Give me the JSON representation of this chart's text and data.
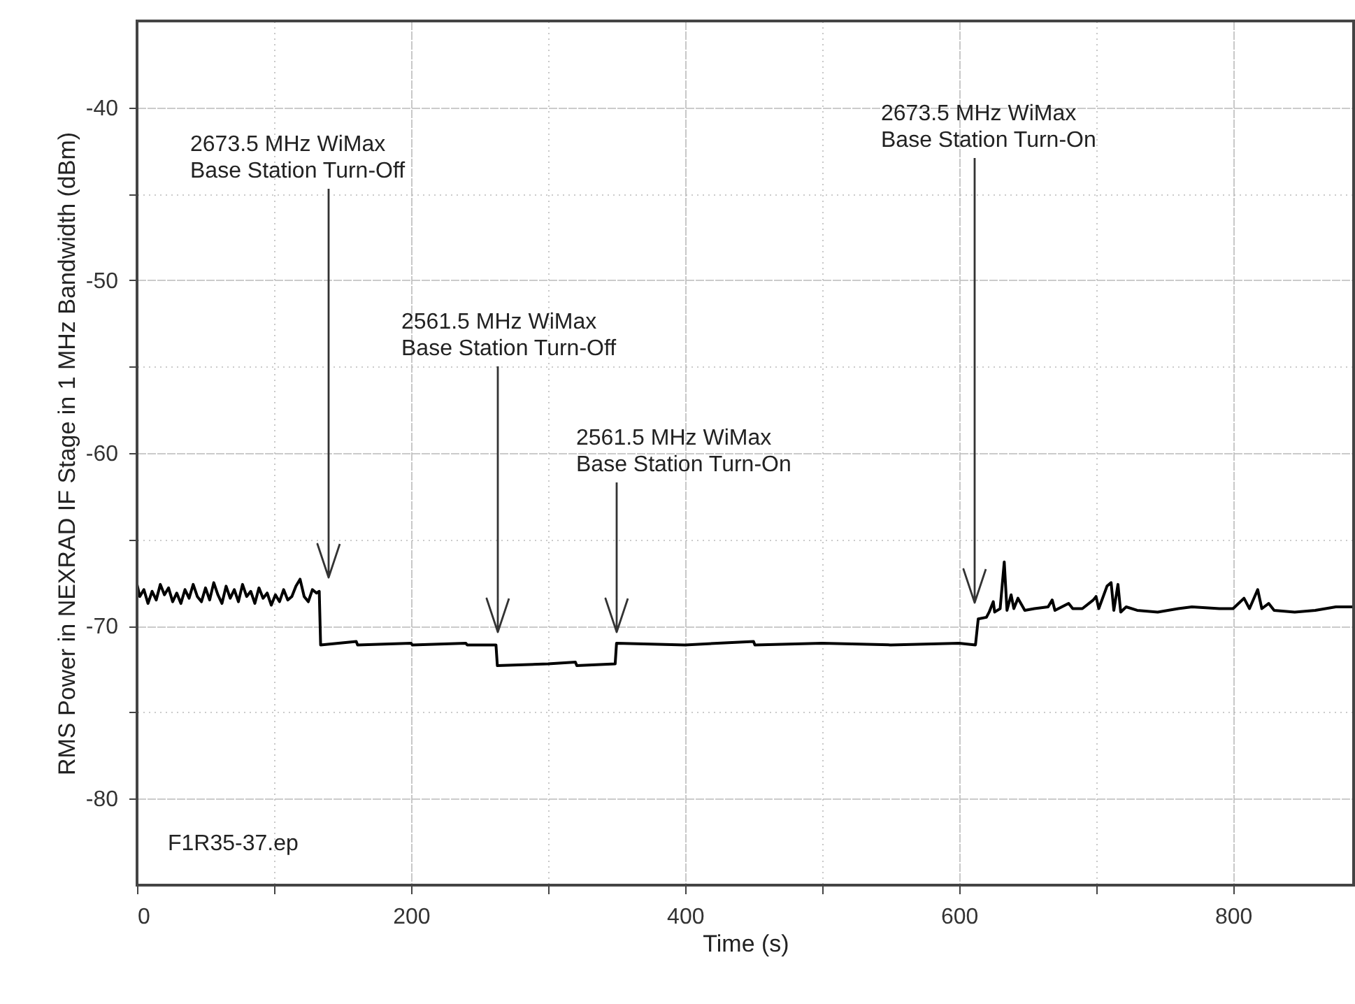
{
  "chart_data": {
    "type": "line",
    "xlabel": "Time (s)",
    "ylabel": "RMS Power in NEXRAD IF Stage in 1 MHz Bandwidth (dBm)",
    "xlim": [
      0,
      888
    ],
    "ylim": [
      -85,
      -35
    ],
    "xticks": [
      0,
      {
        "value": 100,
        "label": null
      },
      200,
      {
        "value": 300,
        "label": null
      },
      400,
      {
        "value": 500,
        "label": null
      },
      600,
      {
        "value": 700,
        "label": null
      },
      800
    ],
    "yticks": [
      -80,
      {
        "value": -75,
        "label": null
      },
      -70,
      {
        "value": -65,
        "label": null
      },
      -60,
      {
        "value": -55,
        "label": null
      },
      -50,
      {
        "value": -45,
        "label": null
      },
      -40
    ],
    "grid": true,
    "line_style": "solid",
    "x": [
      0,
      2,
      5,
      8,
      11,
      14,
      17,
      20,
      23,
      26,
      29,
      32,
      35,
      38,
      41,
      44,
      47,
      50,
      53,
      56,
      59,
      62,
      65,
      68,
      71,
      74,
      77,
      80,
      83,
      86,
      89,
      92,
      95,
      98,
      101,
      104,
      107,
      110,
      113,
      116,
      119,
      122,
      125,
      128,
      131,
      133,
      134,
      160,
      161,
      200,
      201,
      240,
      241,
      262,
      263,
      300,
      320,
      321,
      349,
      350,
      400,
      450,
      451,
      500,
      550,
      600,
      612,
      614,
      620,
      622,
      625,
      626,
      630,
      633,
      635,
      638,
      640,
      643,
      648,
      655,
      665,
      668,
      670,
      680,
      683,
      690,
      698,
      700,
      702,
      708,
      711,
      713,
      716,
      718,
      722,
      730,
      745,
      760,
      770,
      790,
      800,
      808,
      812,
      818,
      821,
      826,
      830,
      845,
      860,
      875,
      888
    ],
    "series": [
      {
        "color": "#000000",
        "values": [
          -67.6,
          -68.3,
          -67.9,
          -68.7,
          -68.0,
          -68.5,
          -67.6,
          -68.2,
          -67.8,
          -68.6,
          -68.1,
          -68.7,
          -67.9,
          -68.4,
          -67.6,
          -68.3,
          -68.6,
          -67.8,
          -68.5,
          -67.5,
          -68.2,
          -68.7,
          -67.7,
          -68.4,
          -67.9,
          -68.6,
          -67.6,
          -68.3,
          -68.0,
          -68.7,
          -67.8,
          -68.4,
          -68.1,
          -68.8,
          -68.2,
          -68.6,
          -67.9,
          -68.5,
          -68.3,
          -67.7,
          -67.3,
          -68.3,
          -68.6,
          -67.9,
          -68.1,
          -68.0,
          -71.1,
          -70.9,
          -71.1,
          -71.0,
          -71.1,
          -71.0,
          -71.1,
          -71.1,
          -72.3,
          -72.2,
          -72.1,
          -72.3,
          -72.2,
          -71.0,
          -71.1,
          -70.9,
          -71.1,
          -71.0,
          -71.1,
          -71.0,
          -71.1,
          -69.6,
          -69.5,
          -69.2,
          -68.6,
          -69.2,
          -69.0,
          -66.3,
          -69.1,
          -68.2,
          -69.0,
          -68.4,
          -69.1,
          -69.0,
          -68.9,
          -68.5,
          -69.1,
          -68.7,
          -69.0,
          -69.0,
          -68.5,
          -68.3,
          -69.0,
          -67.7,
          -67.5,
          -69.1,
          -67.6,
          -69.2,
          -68.9,
          -69.1,
          -69.2,
          -69.0,
          -68.9,
          -69.0,
          -69.0,
          -68.4,
          -69.0,
          -67.9,
          -69.0,
          -68.7,
          -69.1,
          -69.2,
          -69.1,
          -68.9,
          -68.9
        ]
      }
    ],
    "annotations": [
      "2673.5 MHz WiMax\nBase Station Turn-Off",
      "2561.5 MHz WiMax\nBase Station Turn-Off",
      "2561.5 MHz WiMax\nBase Station Turn-On",
      "2673.5 MHz WiMax\nBase Station Turn-On",
      "F1R35-37.ep"
    ]
  }
}
